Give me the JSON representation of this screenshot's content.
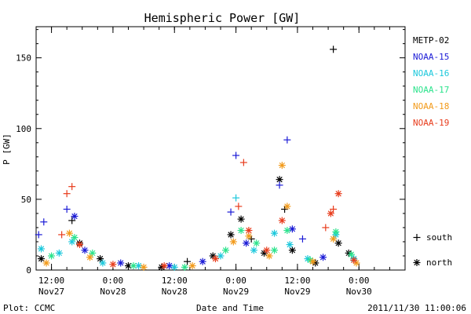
{
  "chart_data": {
    "type": "scatter",
    "title": "Hemispheric Power [GW]",
    "xlabel": "Date and Time",
    "ylabel": "P [GW]",
    "ylim": [
      0,
      172
    ],
    "yticks": [
      0,
      50,
      100,
      150
    ],
    "xlim": [
      "2011-11-27T09:00",
      "2011-11-30T09:00"
    ],
    "xticks": [
      {
        "time": "2011-11-27T12:00",
        "top": "12:00",
        "bottom": "Nov27"
      },
      {
        "time": "2011-11-28T00:00",
        "top": "0:00",
        "bottom": "Nov28"
      },
      {
        "time": "2011-11-28T12:00",
        "top": "12:00",
        "bottom": "Nov28"
      },
      {
        "time": "2011-11-29T00:00",
        "top": "0:00",
        "bottom": "Nov29"
      },
      {
        "time": "2011-11-29T12:00",
        "top": "12:00",
        "bottom": "Nov29"
      },
      {
        "time": "2011-11-30T00:00",
        "top": "0:00",
        "bottom": "Nov30"
      }
    ],
    "grid": false,
    "legend_position": "right",
    "hemisphere_markers": [
      {
        "symbol": "+",
        "label": "south"
      },
      {
        "symbol": "*",
        "label": "north"
      }
    ],
    "series": [
      {
        "name": "METP-02",
        "color": "#000000",
        "points": [
          {
            "x": "2011-11-27T10:00",
            "y": 8,
            "h": "north"
          },
          {
            "x": "2011-11-27T16:00",
            "y": 35,
            "h": "south"
          },
          {
            "x": "2011-11-27T17:30",
            "y": 19,
            "h": "north"
          },
          {
            "x": "2011-11-27T21:30",
            "y": 8,
            "h": "north"
          },
          {
            "x": "2011-11-28T03:00",
            "y": 3,
            "h": "north"
          },
          {
            "x": "2011-11-28T09:30",
            "y": 2,
            "h": "north"
          },
          {
            "x": "2011-11-28T14:30",
            "y": 6,
            "h": "south"
          },
          {
            "x": "2011-11-28T19:30",
            "y": 10,
            "h": "north"
          },
          {
            "x": "2011-11-28T23:00",
            "y": 25,
            "h": "north"
          },
          {
            "x": "2011-11-29T01:00",
            "y": 36,
            "h": "north"
          },
          {
            "x": "2011-11-29T03:00",
            "y": 22,
            "h": "south"
          },
          {
            "x": "2011-11-29T05:30",
            "y": 12,
            "h": "north"
          },
          {
            "x": "2011-11-29T08:30",
            "y": 64,
            "h": "north"
          },
          {
            "x": "2011-11-29T09:30",
            "y": 43,
            "h": "south"
          },
          {
            "x": "2011-11-29T11:00",
            "y": 14,
            "h": "north"
          },
          {
            "x": "2011-11-29T15:30",
            "y": 5,
            "h": "north"
          },
          {
            "x": "2011-11-29T19:00",
            "y": 156,
            "h": "south"
          },
          {
            "x": "2011-11-29T20:00",
            "y": 19,
            "h": "north"
          },
          {
            "x": "2011-11-29T22:00",
            "y": 12,
            "h": "north"
          }
        ]
      },
      {
        "name": "NOAA-15",
        "color": "#1a1ad6",
        "points": [
          {
            "x": "2011-11-27T09:30",
            "y": 25,
            "h": "south"
          },
          {
            "x": "2011-11-27T10:30",
            "y": 34,
            "h": "south"
          },
          {
            "x": "2011-11-27T15:00",
            "y": 43,
            "h": "south"
          },
          {
            "x": "2011-11-27T16:30",
            "y": 38,
            "h": "north"
          },
          {
            "x": "2011-11-27T18:30",
            "y": 14,
            "h": "north"
          },
          {
            "x": "2011-11-28T01:30",
            "y": 5,
            "h": "north"
          },
          {
            "x": "2011-11-28T11:00",
            "y": 3,
            "h": "north"
          },
          {
            "x": "2011-11-28T17:30",
            "y": 6,
            "h": "north"
          },
          {
            "x": "2011-11-28T23:00",
            "y": 41,
            "h": "south"
          },
          {
            "x": "2011-11-29T00:00",
            "y": 81,
            "h": "south"
          },
          {
            "x": "2011-11-29T02:00",
            "y": 19,
            "h": "north"
          },
          {
            "x": "2011-11-29T08:30",
            "y": 60,
            "h": "south"
          },
          {
            "x": "2011-11-29T10:00",
            "y": 92,
            "h": "south"
          },
          {
            "x": "2011-11-29T11:00",
            "y": 29,
            "h": "north"
          },
          {
            "x": "2011-11-29T13:00",
            "y": 22,
            "h": "south"
          },
          {
            "x": "2011-11-29T17:00",
            "y": 9,
            "h": "north"
          }
        ]
      },
      {
        "name": "NOAA-16",
        "color": "#1cc8dc",
        "points": [
          {
            "x": "2011-11-27T10:00",
            "y": 15,
            "h": "north"
          },
          {
            "x": "2011-11-27T13:30",
            "y": 12,
            "h": "north"
          },
          {
            "x": "2011-11-27T16:00",
            "y": 20,
            "h": "north"
          },
          {
            "x": "2011-11-27T22:00",
            "y": 5,
            "h": "north"
          },
          {
            "x": "2011-11-28T05:00",
            "y": 3,
            "h": "north"
          },
          {
            "x": "2011-11-28T12:00",
            "y": 2,
            "h": "north"
          },
          {
            "x": "2011-11-28T21:00",
            "y": 10,
            "h": "north"
          },
          {
            "x": "2011-11-29T00:00",
            "y": 51,
            "h": "south"
          },
          {
            "x": "2011-11-29T03:30",
            "y": 14,
            "h": "north"
          },
          {
            "x": "2011-11-29T07:30",
            "y": 26,
            "h": "north"
          },
          {
            "x": "2011-11-29T10:30",
            "y": 18,
            "h": "north"
          },
          {
            "x": "2011-11-29T14:00",
            "y": 8,
            "h": "north"
          },
          {
            "x": "2011-11-29T19:30",
            "y": 25,
            "h": "north"
          },
          {
            "x": "2011-11-29T23:00",
            "y": 8,
            "h": "north"
          }
        ]
      },
      {
        "name": "NOAA-17",
        "color": "#2be38c",
        "points": [
          {
            "x": "2011-11-27T12:00",
            "y": 10,
            "h": "north"
          },
          {
            "x": "2011-11-27T16:30",
            "y": 23,
            "h": "north"
          },
          {
            "x": "2011-11-27T20:00",
            "y": 12,
            "h": "north"
          },
          {
            "x": "2011-11-28T04:00",
            "y": 3,
            "h": "north"
          },
          {
            "x": "2011-11-28T14:00",
            "y": 2,
            "h": "north"
          },
          {
            "x": "2011-11-28T22:00",
            "y": 14,
            "h": "north"
          },
          {
            "x": "2011-11-29T01:00",
            "y": 28,
            "h": "north"
          },
          {
            "x": "2011-11-29T04:00",
            "y": 19,
            "h": "north"
          },
          {
            "x": "2011-11-29T07:30",
            "y": 14,
            "h": "north"
          },
          {
            "x": "2011-11-29T10:00",
            "y": 28,
            "h": "north"
          },
          {
            "x": "2011-11-29T14:30",
            "y": 7,
            "h": "north"
          },
          {
            "x": "2011-11-29T19:30",
            "y": 27,
            "h": "north"
          },
          {
            "x": "2011-11-29T22:30",
            "y": 11,
            "h": "north"
          }
        ]
      },
      {
        "name": "NOAA-18",
        "color": "#f29a1a",
        "points": [
          {
            "x": "2011-11-27T11:00",
            "y": 5,
            "h": "north"
          },
          {
            "x": "2011-11-27T15:30",
            "y": 26,
            "h": "north"
          },
          {
            "x": "2011-11-27T19:30",
            "y": 9,
            "h": "north"
          },
          {
            "x": "2011-11-28T06:00",
            "y": 2,
            "h": "north"
          },
          {
            "x": "2011-11-28T15:30",
            "y": 3,
            "h": "north"
          },
          {
            "x": "2011-11-28T23:30",
            "y": 20,
            "h": "north"
          },
          {
            "x": "2011-11-29T02:30",
            "y": 24,
            "h": "north"
          },
          {
            "x": "2011-11-29T06:30",
            "y": 10,
            "h": "north"
          },
          {
            "x": "2011-11-29T09:00",
            "y": 74,
            "h": "north"
          },
          {
            "x": "2011-11-29T10:00",
            "y": 45,
            "h": "north"
          },
          {
            "x": "2011-11-29T15:00",
            "y": 6,
            "h": "north"
          },
          {
            "x": "2011-11-29T19:00",
            "y": 22,
            "h": "north"
          },
          {
            "x": "2011-11-29T23:30",
            "y": 5,
            "h": "north"
          }
        ]
      },
      {
        "name": "NOAA-19",
        "color": "#e83c1c",
        "points": [
          {
            "x": "2011-11-27T14:00",
            "y": 25,
            "h": "south"
          },
          {
            "x": "2011-11-27T15:00",
            "y": 54,
            "h": "south"
          },
          {
            "x": "2011-11-27T16:00",
            "y": 59,
            "h": "south"
          },
          {
            "x": "2011-11-27T17:30",
            "y": 18,
            "h": "north"
          },
          {
            "x": "2011-11-28T00:00",
            "y": 4,
            "h": "north"
          },
          {
            "x": "2011-11-28T10:00",
            "y": 3,
            "h": "north"
          },
          {
            "x": "2011-11-28T20:00",
            "y": 8,
            "h": "north"
          },
          {
            "x": "2011-11-29T00:30",
            "y": 45,
            "h": "south"
          },
          {
            "x": "2011-11-29T01:30",
            "y": 76,
            "h": "south"
          },
          {
            "x": "2011-11-29T02:30",
            "y": 28,
            "h": "north"
          },
          {
            "x": "2011-11-29T06:00",
            "y": 14,
            "h": "north"
          },
          {
            "x": "2011-11-29T09:00",
            "y": 35,
            "h": "north"
          },
          {
            "x": "2011-11-29T17:30",
            "y": 30,
            "h": "south"
          },
          {
            "x": "2011-11-29T18:30",
            "y": 40,
            "h": "north"
          },
          {
            "x": "2011-11-29T19:00",
            "y": 43,
            "h": "south"
          },
          {
            "x": "2011-11-29T20:00",
            "y": 54,
            "h": "north"
          },
          {
            "x": "2011-11-29T23:00",
            "y": 7,
            "h": "north"
          }
        ]
      }
    ]
  },
  "footer": {
    "plot_credit": "Plot: CCMC",
    "timestamp": "2011/11/30 11:00:06"
  }
}
